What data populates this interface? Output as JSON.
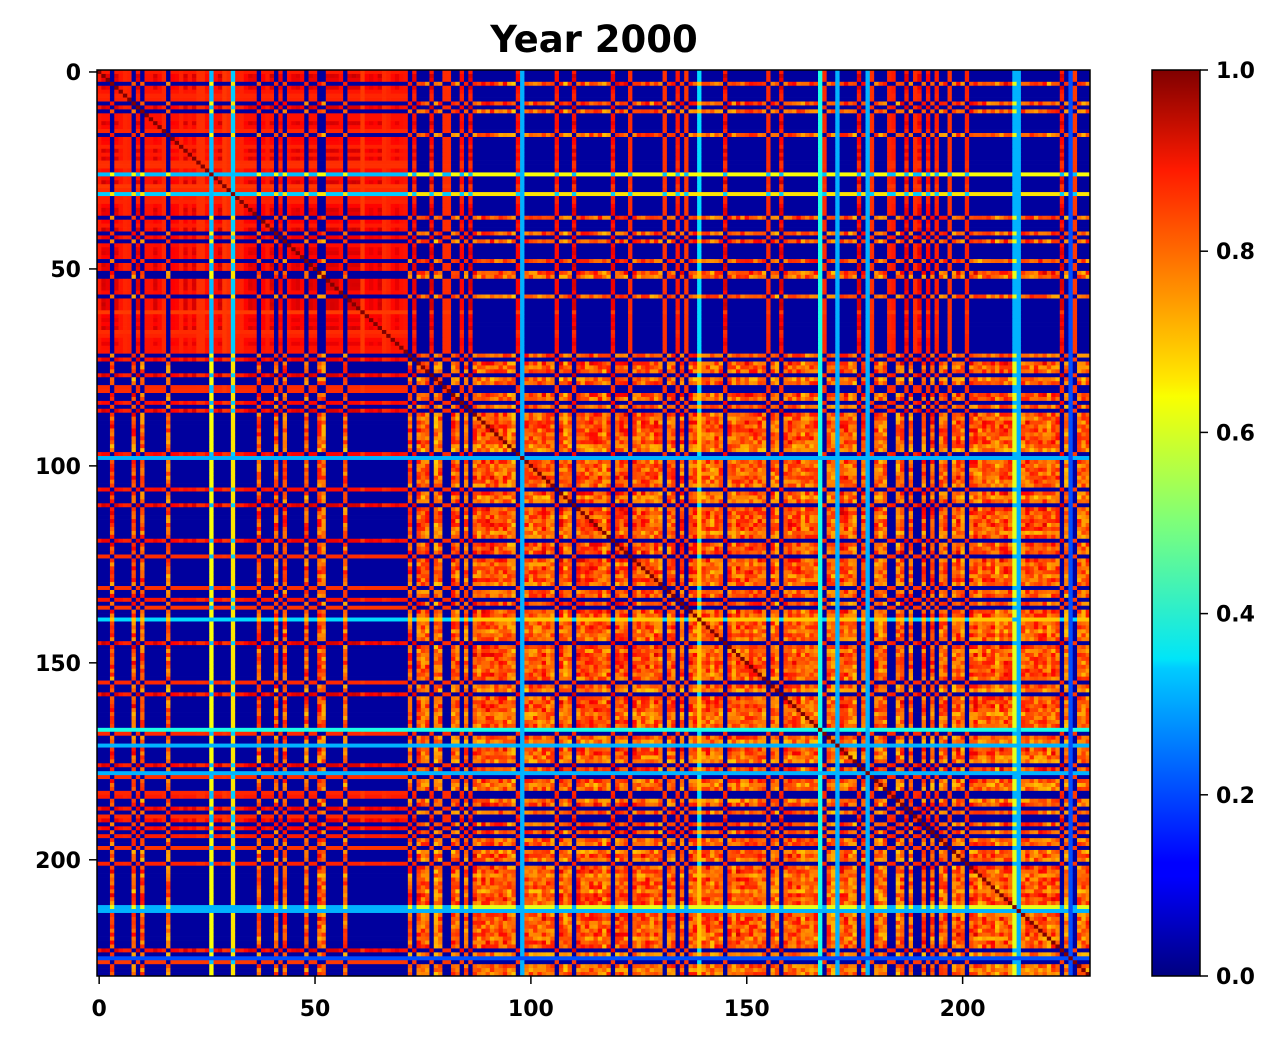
{
  "chart_data": {
    "type": "heatmap",
    "title": "Year 2000",
    "xlabel": "",
    "ylabel": "",
    "size": 230,
    "xlim": [
      0,
      230
    ],
    "ylim": [
      230,
      0
    ],
    "x_ticks": [
      0,
      50,
      100,
      150,
      200
    ],
    "y_ticks": [
      0,
      50,
      100,
      150,
      200
    ],
    "colormap": "jet",
    "colorbar": {
      "min": 0.0,
      "max": 1.0,
      "ticks": [
        "0.0",
        "0.2",
        "0.4",
        "0.6",
        "0.8",
        "1.0"
      ]
    },
    "grid": false,
    "block_structure": {
      "group_a_range": [
        0,
        74
      ],
      "group_b_range": [
        74,
        230
      ],
      "within_group_a": 0.93,
      "within_group_b": 0.85,
      "between_groups": 0.03
    },
    "highlight_lines": [
      {
        "index": 26,
        "value": 0.62
      },
      {
        "index": 31,
        "value": 0.65
      },
      {
        "index": 98,
        "value": 0.3
      },
      {
        "index": 139,
        "value": 0.68
      },
      {
        "index": 167,
        "value": 0.4
      },
      {
        "index": 171,
        "value": 0.3
      },
      {
        "index": 178,
        "value": 0.3
      },
      {
        "index": 212,
        "value": 0.6
      },
      {
        "index": 213,
        "value": 0.3
      },
      {
        "index": 225,
        "value": 0.2
      }
    ]
  }
}
